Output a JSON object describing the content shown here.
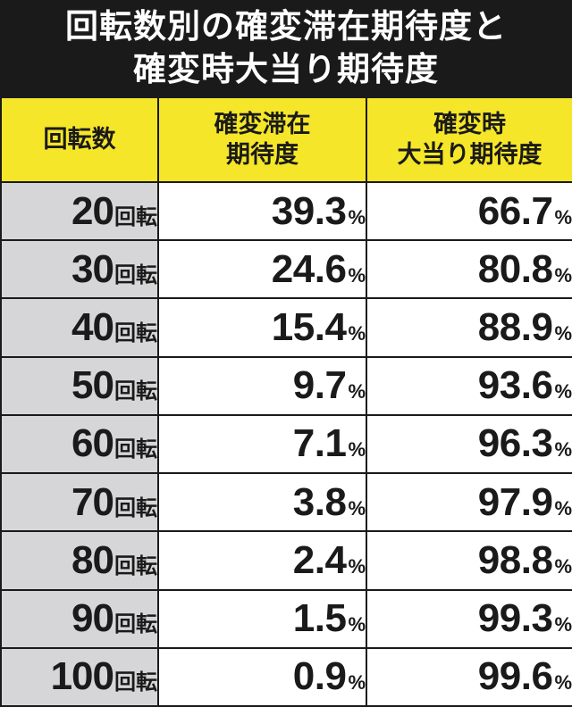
{
  "title": {
    "line1": "回転数別の確変滞在期待度と",
    "line2": "確変時大当り期待度"
  },
  "table": {
    "headers": {
      "spins": "回転数",
      "stay_line1": "確変滞在",
      "stay_line2": "期待度",
      "hit_line1": "確変時",
      "hit_line2": "大当り期待度"
    },
    "spin_unit": "回転",
    "percent_sign": "%",
    "rows": [
      {
        "spins": "20",
        "stay": "39.3",
        "hit": "66.7"
      },
      {
        "spins": "30",
        "stay": "24.6",
        "hit": "80.8"
      },
      {
        "spins": "40",
        "stay": "15.4",
        "hit": "88.9"
      },
      {
        "spins": "50",
        "stay": "9.7",
        "hit": "93.6"
      },
      {
        "spins": "60",
        "stay": "7.1",
        "hit": "96.3"
      },
      {
        "spins": "70",
        "stay": "3.8",
        "hit": "97.9"
      },
      {
        "spins": "80",
        "stay": "2.4",
        "hit": "98.8"
      },
      {
        "spins": "90",
        "stay": "1.5",
        "hit": "99.3"
      },
      {
        "spins": "100",
        "stay": "0.9",
        "hit": "99.6"
      }
    ]
  },
  "colors": {
    "title_bg": "#1a1a1a",
    "header_bg": "#f5e629",
    "spins_column_bg": "#d6d6d8",
    "border": "#1a1a1a"
  }
}
